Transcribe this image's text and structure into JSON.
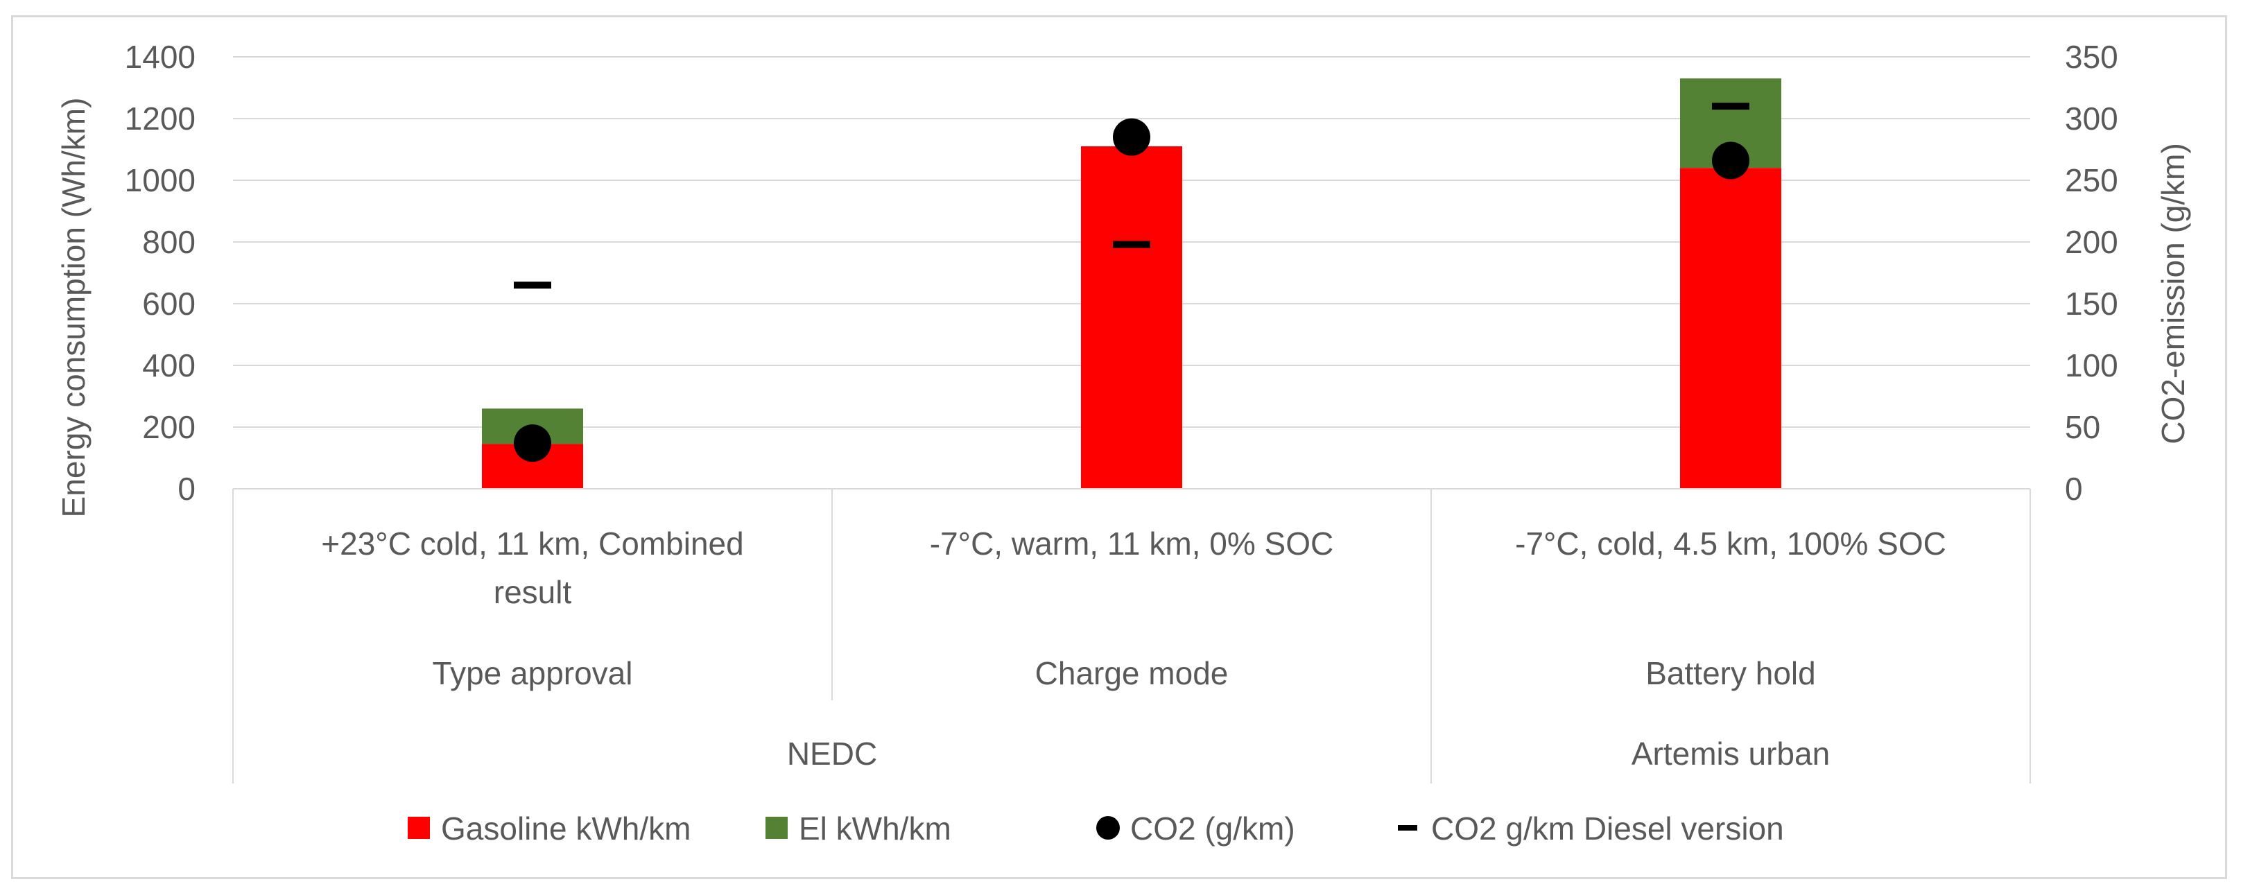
{
  "chart_data": {
    "type": "bar",
    "stacked": true,
    "title": "",
    "ylabel": "Energy consumption (Wh/km)",
    "y2label": "CO2-emission (g/km)",
    "ylim": [
      0,
      1400
    ],
    "y_ticks": [
      0,
      200,
      400,
      600,
      800,
      1000,
      1200,
      1400
    ],
    "y2lim": [
      0,
      350
    ],
    "y2_ticks": [
      0,
      50,
      100,
      150,
      200,
      250,
      300,
      350
    ],
    "grid": true,
    "legend_position": "bottom",
    "categories": [
      {
        "label": "+23°C cold, 11 km, Combined result",
        "lines": [
          "+23°C cold, 11 km, Combined",
          "result"
        ],
        "mode": "Type approval"
      },
      {
        "label": "-7°C, warm, 11 km, 0% SOC",
        "lines": [
          "-7°C, warm, 11 km, 0% SOC"
        ],
        "mode": "Charge mode"
      },
      {
        "label": "-7°C, cold, 4.5 km, 100% SOC",
        "lines": [
          "-7°C, cold, 4.5 km, 100% SOC"
        ],
        "mode": "Battery hold"
      }
    ],
    "groups": [
      {
        "label": "NEDC",
        "span": [
          0,
          1
        ]
      },
      {
        "label": "Artemis urban",
        "span": [
          2,
          2
        ]
      }
    ],
    "series": [
      {
        "name": "Gasoline kWh/km",
        "kind": "bar",
        "axis": "left",
        "color": "#ff0000",
        "values": [
          145,
          1110,
          1040
        ]
      },
      {
        "name": "El kWh/km",
        "kind": "bar",
        "axis": "left",
        "color": "#548235",
        "values": [
          115,
          0,
          290
        ]
      },
      {
        "name": "CO2 (g/km)",
        "kind": "marker-circle",
        "axis": "right",
        "color": "#000000",
        "values": [
          37,
          285,
          266
        ]
      },
      {
        "name": "CO2 g/km Diesel version",
        "kind": "marker-dash",
        "axis": "right",
        "color": "#000000",
        "values": [
          165,
          198,
          310
        ]
      }
    ]
  }
}
